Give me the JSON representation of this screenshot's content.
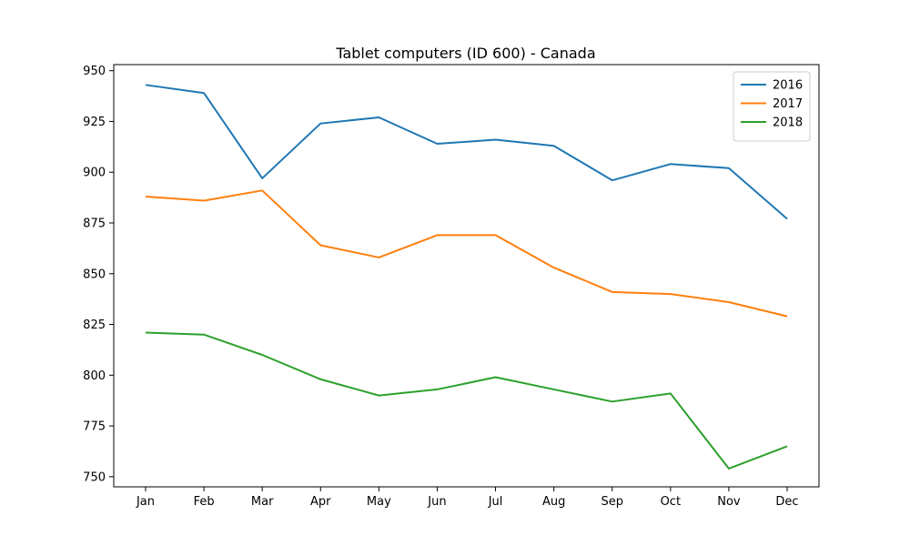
{
  "chart_data": {
    "type": "line",
    "title": "Tablet computers (ID 600) - Canada",
    "xlabel": "",
    "ylabel": "",
    "categories": [
      "Jan",
      "Feb",
      "Mar",
      "Apr",
      "May",
      "Jun",
      "Jul",
      "Aug",
      "Sep",
      "Oct",
      "Nov",
      "Dec"
    ],
    "yticks": [
      750,
      775,
      800,
      825,
      850,
      875,
      900,
      925,
      950
    ],
    "ylim": [
      745,
      953
    ],
    "grid": false,
    "legend_position": "top-right",
    "series": [
      {
        "name": "2016",
        "color": "#1f77b4",
        "values": [
          943,
          939,
          897,
          924,
          927,
          914,
          916,
          913,
          896,
          904,
          902,
          877
        ]
      },
      {
        "name": "2017",
        "color": "#ff7f0e",
        "values": [
          888,
          886,
          891,
          864,
          858,
          869,
          869,
          853,
          841,
          840,
          836,
          829
        ]
      },
      {
        "name": "2018",
        "color": "#2ca02c",
        "values": [
          821,
          820,
          810,
          798,
          790,
          793,
          799,
          793,
          787,
          791,
          754,
          765
        ]
      }
    ]
  }
}
